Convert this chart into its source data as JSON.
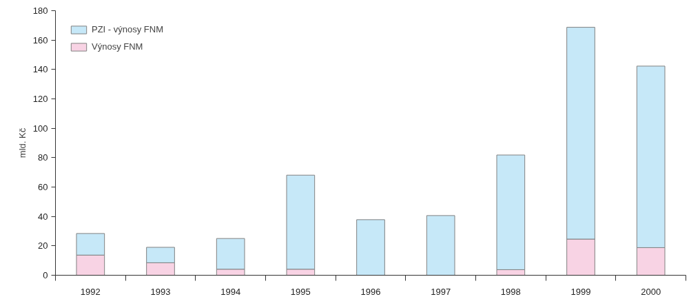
{
  "chart_data": {
    "type": "bar",
    "stacked": true,
    "ylabel": "mld. Kč",
    "categories": [
      "1992",
      "1993",
      "1994",
      "1995",
      "1996",
      "1997",
      "1998",
      "1999",
      "2000"
    ],
    "series": [
      {
        "name": "Výnosy FNM",
        "color": "#f8d3e4",
        "values": [
          13.7,
          8.5,
          4.1,
          4.1,
          null,
          null,
          3.8,
          24.6,
          18.8
        ]
      },
      {
        "name": "PZI - výnosy FNM",
        "color": "#c6e8f8",
        "values": [
          14.7,
          10.5,
          20.9,
          64.0,
          37.8,
          40.6,
          78.0,
          144.1,
          123.5
        ]
      }
    ],
    "ylim": [
      0,
      180
    ],
    "yticks": [
      0,
      20,
      40,
      60,
      80,
      100,
      120,
      140,
      160,
      180
    ],
    "legend": "top left",
    "grid": false
  }
}
